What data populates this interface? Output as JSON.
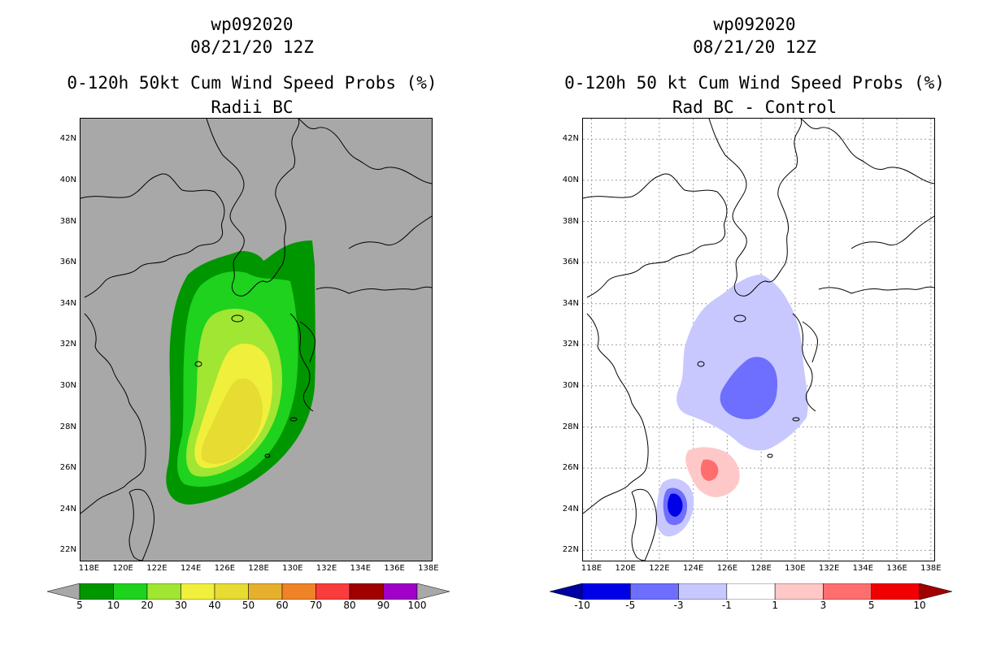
{
  "left_panel": {
    "storm_id": "wp092020",
    "date": "08/21/20 12Z",
    "title": "0-120h 50kt Cum Wind Speed Probs (%)",
    "subtitle": "Radii BC",
    "background_color": "#a8a8a8",
    "colorbar": {
      "colors": [
        "#009600",
        "#1ed21e",
        "#a0e632",
        "#f0f03c",
        "#e6dc32",
        "#e6af2d",
        "#f08228",
        "#fa3c3c",
        "#a00000",
        "#a000c8"
      ],
      "labels": [
        "5",
        "10",
        "20",
        "30",
        "40",
        "50",
        "60",
        "70",
        "80",
        "90",
        "100"
      ],
      "end_triangle_color": "#a8a8a8"
    },
    "probability_regions": [
      {
        "threshold": "5",
        "color": "#009600",
        "center_lon": 126.2,
        "center_lat": 30.5
      },
      {
        "threshold": "10",
        "color": "#1ed21e",
        "center_lon": 126.2,
        "center_lat": 29.5
      },
      {
        "threshold": "20",
        "color": "#a0e632",
        "center_lon": 126.3,
        "center_lat": 28.8
      },
      {
        "threshold": "30",
        "color": "#f0f03c",
        "center_lon": 126.4,
        "center_lat": 28.4
      },
      {
        "threshold": "40",
        "color": "#e6dc32",
        "center_lon": 126.6,
        "center_lat": 27.5
      }
    ]
  },
  "right_panel": {
    "storm_id": "wp092020",
    "date": "08/21/20 12Z",
    "title": "0-120h 50 kt Cum Wind Speed Probs (%)",
    "subtitle": "Rad BC - Control",
    "background_color": "#ffffff",
    "colorbar": {
      "colors": [
        "#0000e6",
        "#6e6eff",
        "#c8c8ff",
        "#ffffff",
        "#ffc8c8",
        "#ff6e6e",
        "#f00000"
      ],
      "labels": [
        "-10",
        "-5",
        "-3",
        "-1",
        "1",
        "3",
        "5",
        "10"
      ],
      "left_triangle_color": "#0000a0",
      "right_triangle_color": "#a00000"
    },
    "difference_regions": [
      {
        "range": "-3 to -1",
        "color": "#c8c8ff",
        "center_lon": 128.0,
        "center_lat": 29.8
      },
      {
        "range": "-5 to -3",
        "color": "#6e6eff",
        "center_lon": 128.0,
        "center_lat": 29.7
      },
      {
        "range": "1 to 3",
        "color": "#ffc8c8",
        "center_lon": 124.8,
        "center_lat": 25.9
      },
      {
        "range": "3 to 5",
        "color": "#ff6e6e",
        "center_lon": 124.6,
        "center_lat": 26.0
      },
      {
        "range": "-3 to -1",
        "color": "#c8c8ff",
        "center_lon": 122.9,
        "center_lat": 24.2
      },
      {
        "range": "-5 to -3",
        "color": "#6e6eff",
        "center_lon": 122.9,
        "center_lat": 24.4
      },
      {
        "range": "-10 to -5",
        "color": "#0000e6",
        "center_lon": 122.9,
        "center_lat": 24.5
      }
    ]
  },
  "axes": {
    "lon_labels": [
      "118E",
      "120E",
      "122E",
      "124E",
      "126E",
      "128E",
      "130E",
      "132E",
      "134E",
      "136E",
      "138E"
    ],
    "lat_labels": [
      "22N",
      "24N",
      "26N",
      "28N",
      "30N",
      "32N",
      "34N",
      "36N",
      "38N",
      "40N",
      "42N"
    ],
    "lon_values": [
      118,
      120,
      122,
      124,
      126,
      128,
      130,
      132,
      134,
      136,
      138
    ],
    "lat_values": [
      22,
      24,
      26,
      28,
      30,
      32,
      34,
      36,
      38,
      40,
      42
    ],
    "lon_range": [
      117.5,
      138.2
    ],
    "lat_range": [
      21.5,
      43.0
    ]
  }
}
